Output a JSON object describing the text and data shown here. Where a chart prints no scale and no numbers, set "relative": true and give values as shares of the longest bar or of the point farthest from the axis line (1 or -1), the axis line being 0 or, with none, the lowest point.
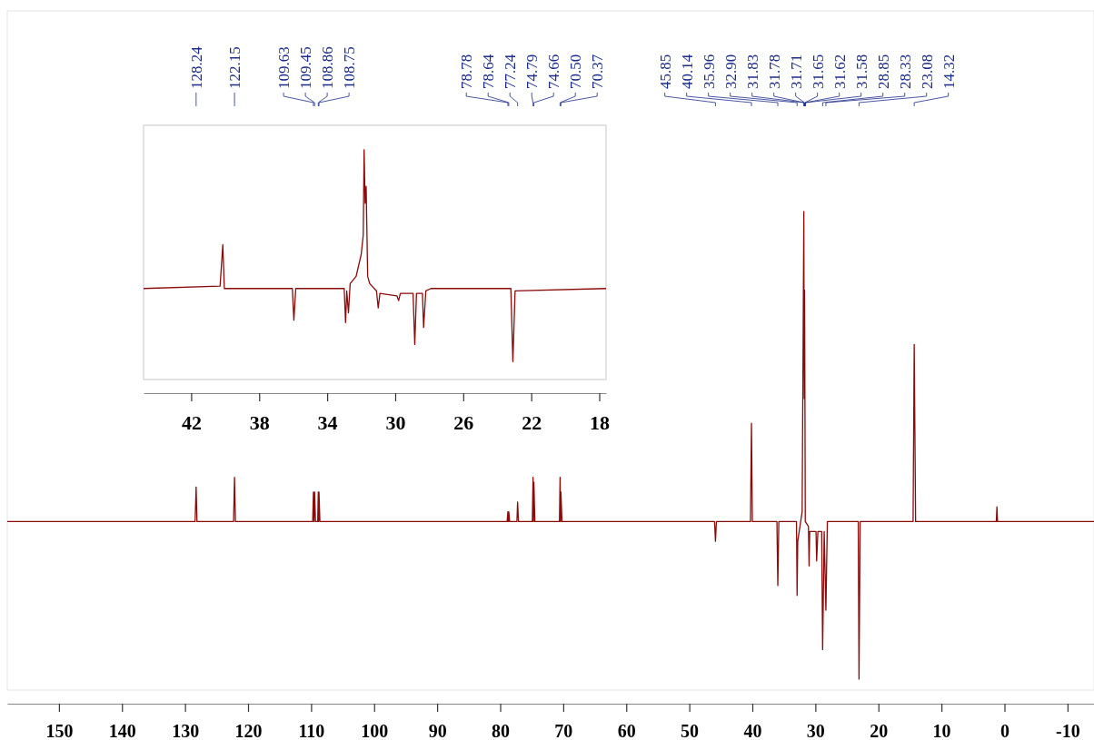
{
  "chart_data": [
    {
      "type": "line",
      "relative": true,
      "xlim": [
        158.2,
        -14.2
      ],
      "xticks": [
        150,
        140,
        130,
        120,
        110,
        100,
        90,
        80,
        70,
        60,
        50,
        40,
        30,
        20,
        10,
        0,
        -10
      ],
      "annotations": [
        {
          "text": "128.24",
          "x": 128.24
        },
        {
          "text": "122.15",
          "x": 122.15
        },
        {
          "text": "109.63",
          "x": 109.63
        },
        {
          "text": "109.45",
          "x": 109.45
        },
        {
          "text": "108.86",
          "x": 108.86
        },
        {
          "text": "108.75",
          "x": 108.75
        },
        {
          "text": "78.78",
          "x": 78.78
        },
        {
          "text": "78.64",
          "x": 78.64
        },
        {
          "text": "77.24",
          "x": 77.24
        },
        {
          "text": "74.79",
          "x": 74.79
        },
        {
          "text": "74.66",
          "x": 74.66
        },
        {
          "text": "70.50",
          "x": 70.5
        },
        {
          "text": "70.37",
          "x": 70.37
        },
        {
          "text": "45.85",
          "x": 45.85
        },
        {
          "text": "40.14",
          "x": 40.14
        },
        {
          "text": "35.96",
          "x": 35.96
        },
        {
          "text": "32.90",
          "x": 32.9
        },
        {
          "text": "31.83",
          "x": 31.83
        },
        {
          "text": "31.78",
          "x": 31.78
        },
        {
          "text": "31.71",
          "x": 31.71
        },
        {
          "text": "31.65",
          "x": 31.65
        },
        {
          "text": "31.62",
          "x": 31.62
        },
        {
          "text": "31.58",
          "x": 31.58
        },
        {
          "text": "28.85",
          "x": 28.85
        },
        {
          "text": "28.33",
          "x": 28.33
        },
        {
          "text": "23.08",
          "x": 23.08
        },
        {
          "text": "14.32",
          "x": 14.32
        }
      ],
      "series": [
        {
          "color": "#8b0a0a",
          "x": [
            158.2,
            128.4,
            128.24,
            128.1,
            122.3,
            122.15,
            122.0,
            109.75,
            109.63,
            109.54,
            109.45,
            109.3,
            108.95,
            108.86,
            108.8,
            108.75,
            108.6,
            78.9,
            78.78,
            78.7,
            78.64,
            78.5,
            77.35,
            77.24,
            77.1,
            74.9,
            74.79,
            74.72,
            74.66,
            74.5,
            70.6,
            70.5,
            70.42,
            70.37,
            70.2,
            46.0,
            45.85,
            45.7,
            40.3,
            40.14,
            40.0,
            36.1,
            35.96,
            35.8,
            33.0,
            32.9,
            32.8,
            32.1,
            31.83,
            31.77,
            31.71,
            31.6,
            31.1,
            31.0,
            30.9,
            29.9,
            29.8,
            29.6,
            29.0,
            28.85,
            28.6,
            28.33,
            28.1,
            23.2,
            23.08,
            22.9,
            14.5,
            14.32,
            14.1,
            1.3,
            1.2,
            1.1,
            -14.2
          ],
          "values": [
            0.37,
            0.37,
            0.44,
            0.37,
            0.37,
            0.46,
            0.37,
            0.37,
            0.43,
            0.37,
            0.43,
            0.37,
            0.37,
            0.43,
            0.37,
            0.43,
            0.37,
            0.37,
            0.39,
            0.37,
            0.39,
            0.37,
            0.37,
            0.41,
            0.37,
            0.37,
            0.46,
            0.37,
            0.45,
            0.37,
            0.37,
            0.46,
            0.37,
            0.43,
            0.37,
            0.37,
            0.33,
            0.37,
            0.37,
            0.57,
            0.37,
            0.37,
            0.24,
            0.37,
            0.37,
            0.22,
            0.33,
            0.39,
            1,
            0.62,
            0.84,
            0.37,
            0.36,
            0.28,
            0.35,
            0.35,
            0.29,
            0.35,
            0.35,
            0.11,
            0.35,
            0.19,
            0.37,
            0.37,
            0.05,
            0.37,
            0.37,
            0.73,
            0.37,
            0.37,
            0.4,
            0.37,
            0.37
          ]
        }
      ]
    },
    {
      "type": "line",
      "relative": true,
      "xlim": [
        44.8,
        17.6
      ],
      "xticks": [
        42,
        38,
        34,
        30,
        26,
        22,
        18
      ],
      "series": [
        {
          "color": "#8b0a0a",
          "x": [
            44.8,
            40.3,
            40.14,
            40.05,
            36.05,
            35.96,
            35.85,
            33.0,
            32.92,
            32.85,
            32.75,
            32.65,
            32.3,
            32.0,
            31.88,
            31.83,
            31.77,
            31.71,
            31.62,
            31.5,
            31.1,
            31.0,
            30.9,
            29.9,
            29.8,
            29.7,
            28.95,
            28.85,
            28.75,
            28.4,
            28.33,
            28.2,
            27.9,
            23.2,
            23.08,
            22.95,
            17.6
          ],
          "values": [
            0.43,
            0.44,
            0.61,
            0.43,
            0.43,
            0.3,
            0.43,
            0.43,
            0.29,
            0.42,
            0.33,
            0.45,
            0.48,
            0.57,
            0.65,
            1,
            0.78,
            0.85,
            0.48,
            0.45,
            0.42,
            0.35,
            0.41,
            0.4,
            0.38,
            0.41,
            0.41,
            0.2,
            0.41,
            0.41,
            0.27,
            0.42,
            0.43,
            0.43,
            0.13,
            0.42,
            0.43
          ]
        }
      ]
    }
  ]
}
